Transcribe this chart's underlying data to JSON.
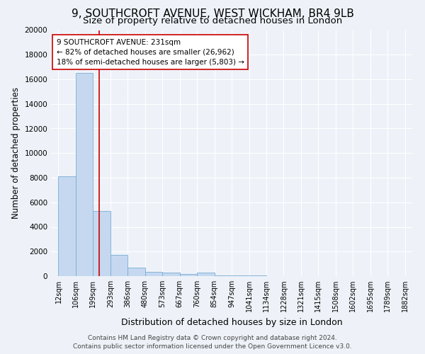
{
  "title": "9, SOUTHCROFT AVENUE, WEST WICKHAM, BR4 9LB",
  "subtitle": "Size of property relative to detached houses in London",
  "xlabel": "Distribution of detached houses by size in London",
  "ylabel": "Number of detached properties",
  "footer_line1": "Contains HM Land Registry data © Crown copyright and database right 2024.",
  "footer_line2": "Contains public sector information licensed under the Open Government Licence v3.0.",
  "bar_edges": [
    12,
    106,
    199,
    293,
    386,
    480,
    573,
    667,
    760,
    854,
    947,
    1041,
    1134,
    1228,
    1321,
    1415,
    1508,
    1602,
    1695,
    1789,
    1882
  ],
  "bar_heights": [
    8100,
    16500,
    5300,
    1750,
    700,
    350,
    270,
    160,
    300,
    60,
    50,
    35,
    25,
    20,
    15,
    12,
    10,
    8,
    6,
    4
  ],
  "bar_color": "#c5d8f0",
  "bar_edge_color": "#7aadd4",
  "property_size": 231,
  "vline_color": "#cc0000",
  "annotation_line1": "9 SOUTHCROFT AVENUE: 231sqm",
  "annotation_line2": "← 82% of detached houses are smaller (26,962)",
  "annotation_line3": "18% of semi-detached houses are larger (5,803) →",
  "annotation_box_color": "#ffffff",
  "annotation_box_edge": "#cc0000",
  "ylim": [
    0,
    20000
  ],
  "yticks": [
    0,
    2000,
    4000,
    6000,
    8000,
    10000,
    12000,
    14000,
    16000,
    18000,
    20000
  ],
  "tick_labels": [
    "12sqm",
    "106sqm",
    "199sqm",
    "293sqm",
    "386sqm",
    "480sqm",
    "573sqm",
    "667sqm",
    "760sqm",
    "854sqm",
    "947sqm",
    "1041sqm",
    "1134sqm",
    "1228sqm",
    "1321sqm",
    "1415sqm",
    "1508sqm",
    "1602sqm",
    "1695sqm",
    "1789sqm",
    "1882sqm"
  ],
  "background_color": "#eef2f8",
  "grid_color": "#ffffff",
  "title_fontsize": 11,
  "subtitle_fontsize": 9.5,
  "xlabel_fontsize": 9,
  "ylabel_fontsize": 8.5,
  "tick_fontsize": 7,
  "annotation_fontsize": 7.5,
  "footer_fontsize": 6.5
}
